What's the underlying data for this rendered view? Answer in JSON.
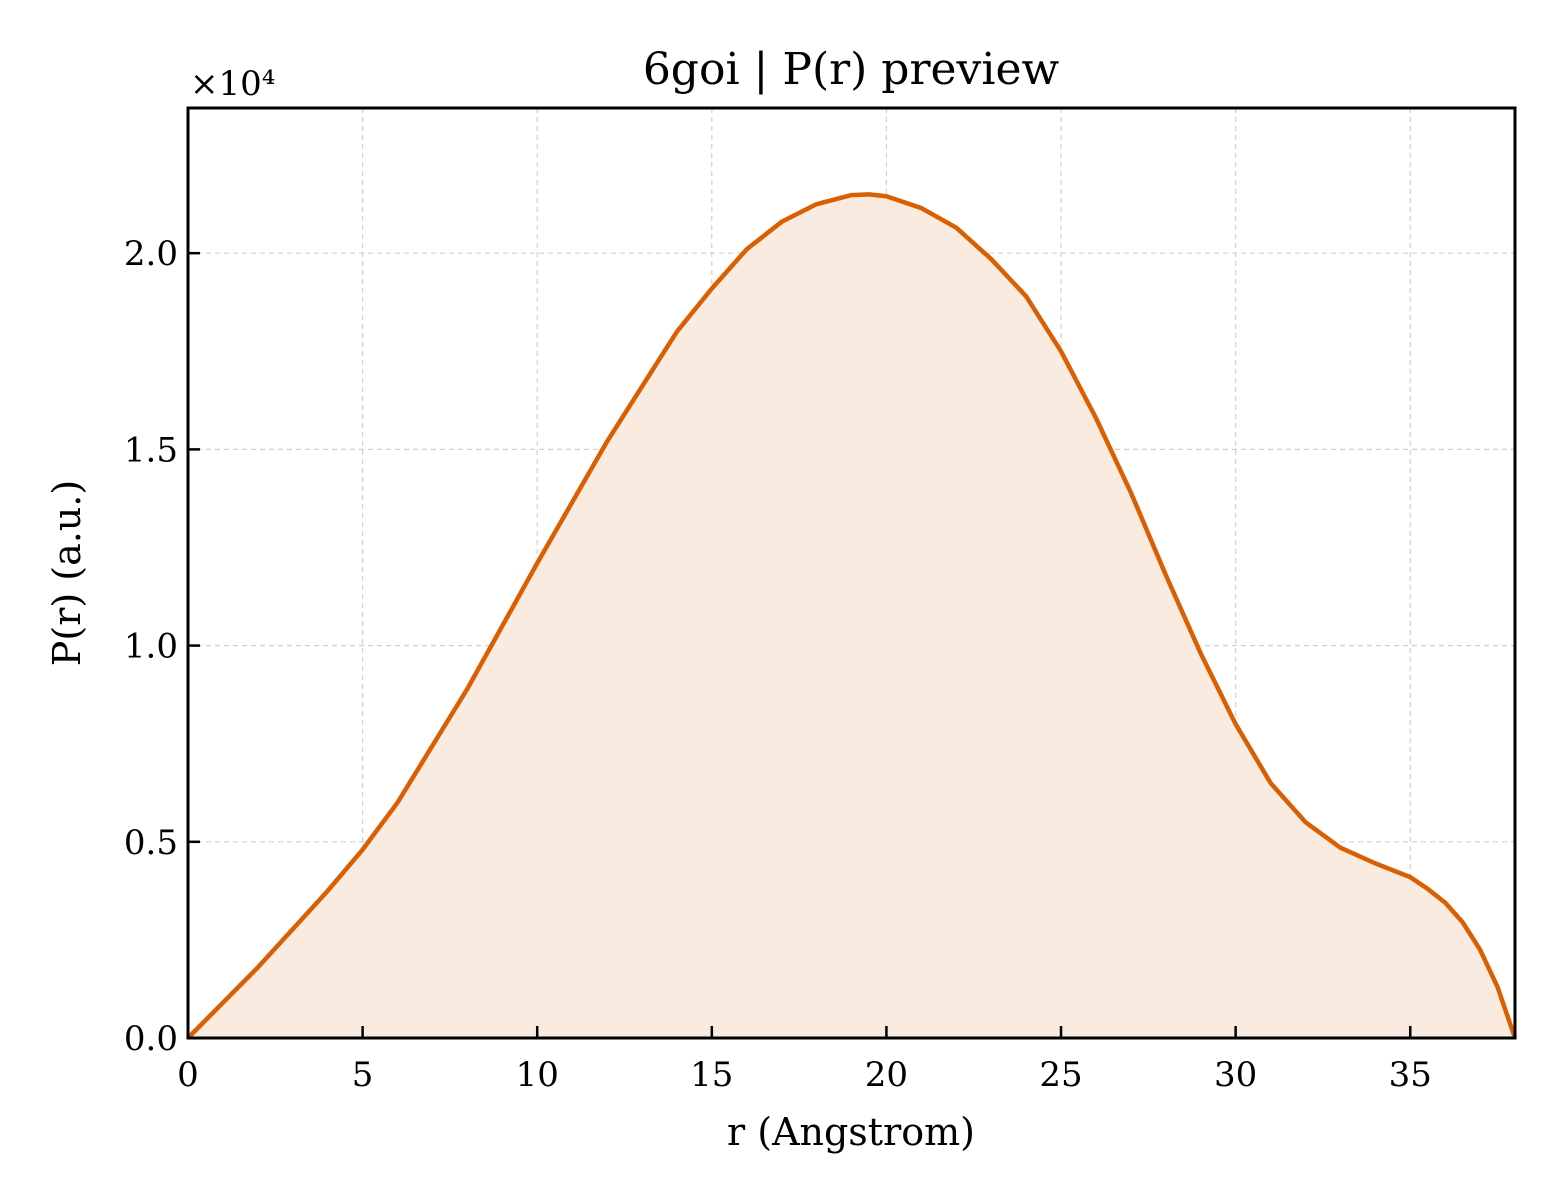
{
  "chart_data": {
    "type": "area",
    "title": "6goi | P(r) preview",
    "xlabel": "r (Angstrom)",
    "ylabel": "P(r) (a.u.)",
    "y_offset_label": "×10⁴",
    "y_scale": 10000,
    "xlim": [
      0,
      38
    ],
    "ylim": [
      0,
      23700
    ],
    "x_ticks": [
      0,
      5,
      10,
      15,
      20,
      25,
      30,
      35
    ],
    "x_tick_labels": [
      "0",
      "5",
      "10",
      "15",
      "20",
      "25",
      "30",
      "35"
    ],
    "y_ticks": [
      0,
      5000,
      10000,
      15000,
      20000
    ],
    "y_tick_labels": [
      "0.0",
      "0.5",
      "1.0",
      "1.5",
      "2.0"
    ],
    "grid": true,
    "line_color": "#d95f02",
    "fill_color": "#faebe0",
    "series": [
      {
        "x": [
          0,
          2,
          4,
          5,
          6,
          8,
          10,
          12,
          14,
          15,
          16,
          17,
          18,
          19,
          19.5,
          20,
          21,
          22,
          23,
          24,
          25,
          26,
          27,
          28,
          29,
          30,
          31,
          32,
          33,
          34,
          35,
          35.5,
          36,
          36.5,
          37,
          37.5,
          38
        ],
        "y": [
          0,
          1800,
          3750,
          4800,
          6000,
          8900,
          12100,
          15200,
          18000,
          19100,
          20100,
          20800,
          21250,
          21480,
          21500,
          21450,
          21150,
          20650,
          19850,
          18900,
          17500,
          15800,
          13900,
          11800,
          9800,
          8000,
          6500,
          5500,
          4850,
          4450,
          4100,
          3800,
          3450,
          2950,
          2250,
          1300,
          0
        ]
      }
    ]
  }
}
